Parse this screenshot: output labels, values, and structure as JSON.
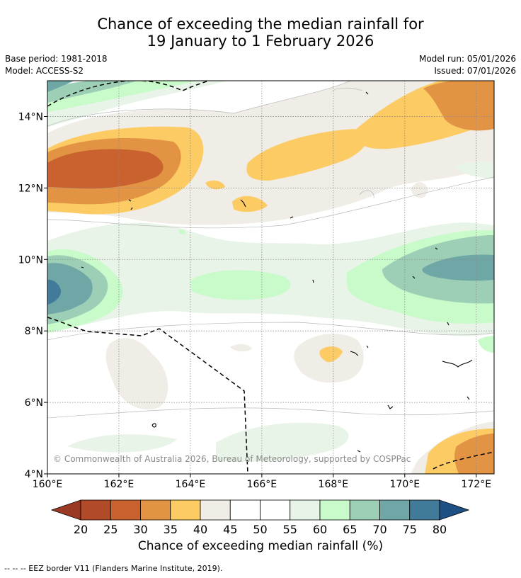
{
  "title": {
    "line1": "Chance of exceeding the median rainfall for",
    "line2": "19 January to 1 February 2026"
  },
  "meta": {
    "base_period": "Base period: 1981-2018",
    "model": "Model: ACCESS-S2",
    "model_run": "Model run: 05/01/2026",
    "issued": "Issued: 07/01/2026"
  },
  "map": {
    "lon_range": [
      160,
      172.5
    ],
    "lat_range": [
      4,
      15
    ],
    "lon_ticks": [
      {
        "value": 160,
        "label": "160°E"
      },
      {
        "value": 162,
        "label": "162°E"
      },
      {
        "value": 164,
        "label": "164°E"
      },
      {
        "value": 166,
        "label": "166°E"
      },
      {
        "value": 168,
        "label": "168°E"
      },
      {
        "value": 170,
        "label": "170°E"
      },
      {
        "value": 172,
        "label": "172°E"
      }
    ],
    "lat_ticks": [
      {
        "value": 4,
        "label": "4°N"
      },
      {
        "value": 6,
        "label": "6°N"
      },
      {
        "value": 8,
        "label": "8°N"
      },
      {
        "value": 10,
        "label": "10°N"
      },
      {
        "value": 12,
        "label": "12°N"
      },
      {
        "value": 14,
        "label": "14°N"
      }
    ],
    "copyright": "© Commonwealth of Australia 2026, Bureau of Meteorology, supported by COSPPac"
  },
  "colorbar": {
    "label": "Chance of exceeding median rainfall (%)",
    "ticks": [
      "20",
      "25",
      "30",
      "35",
      "40",
      "45",
      "50",
      "55",
      "60",
      "65",
      "70",
      "75",
      "80"
    ],
    "colors": [
      "#9b3a24",
      "#b14a28",
      "#c9622e",
      "#e29444",
      "#fdcb63",
      "#f0ece6",
      "#ffffff",
      "#ffffff",
      "#e8f4e8",
      "#c9fac9",
      "#9dcfb6",
      "#6fa6a6",
      "#427b99",
      "#1e5086"
    ]
  },
  "footer": {
    "eez_note": "--  --  -- EEZ border V11 (Flanders Marine Institute, 2019)."
  }
}
